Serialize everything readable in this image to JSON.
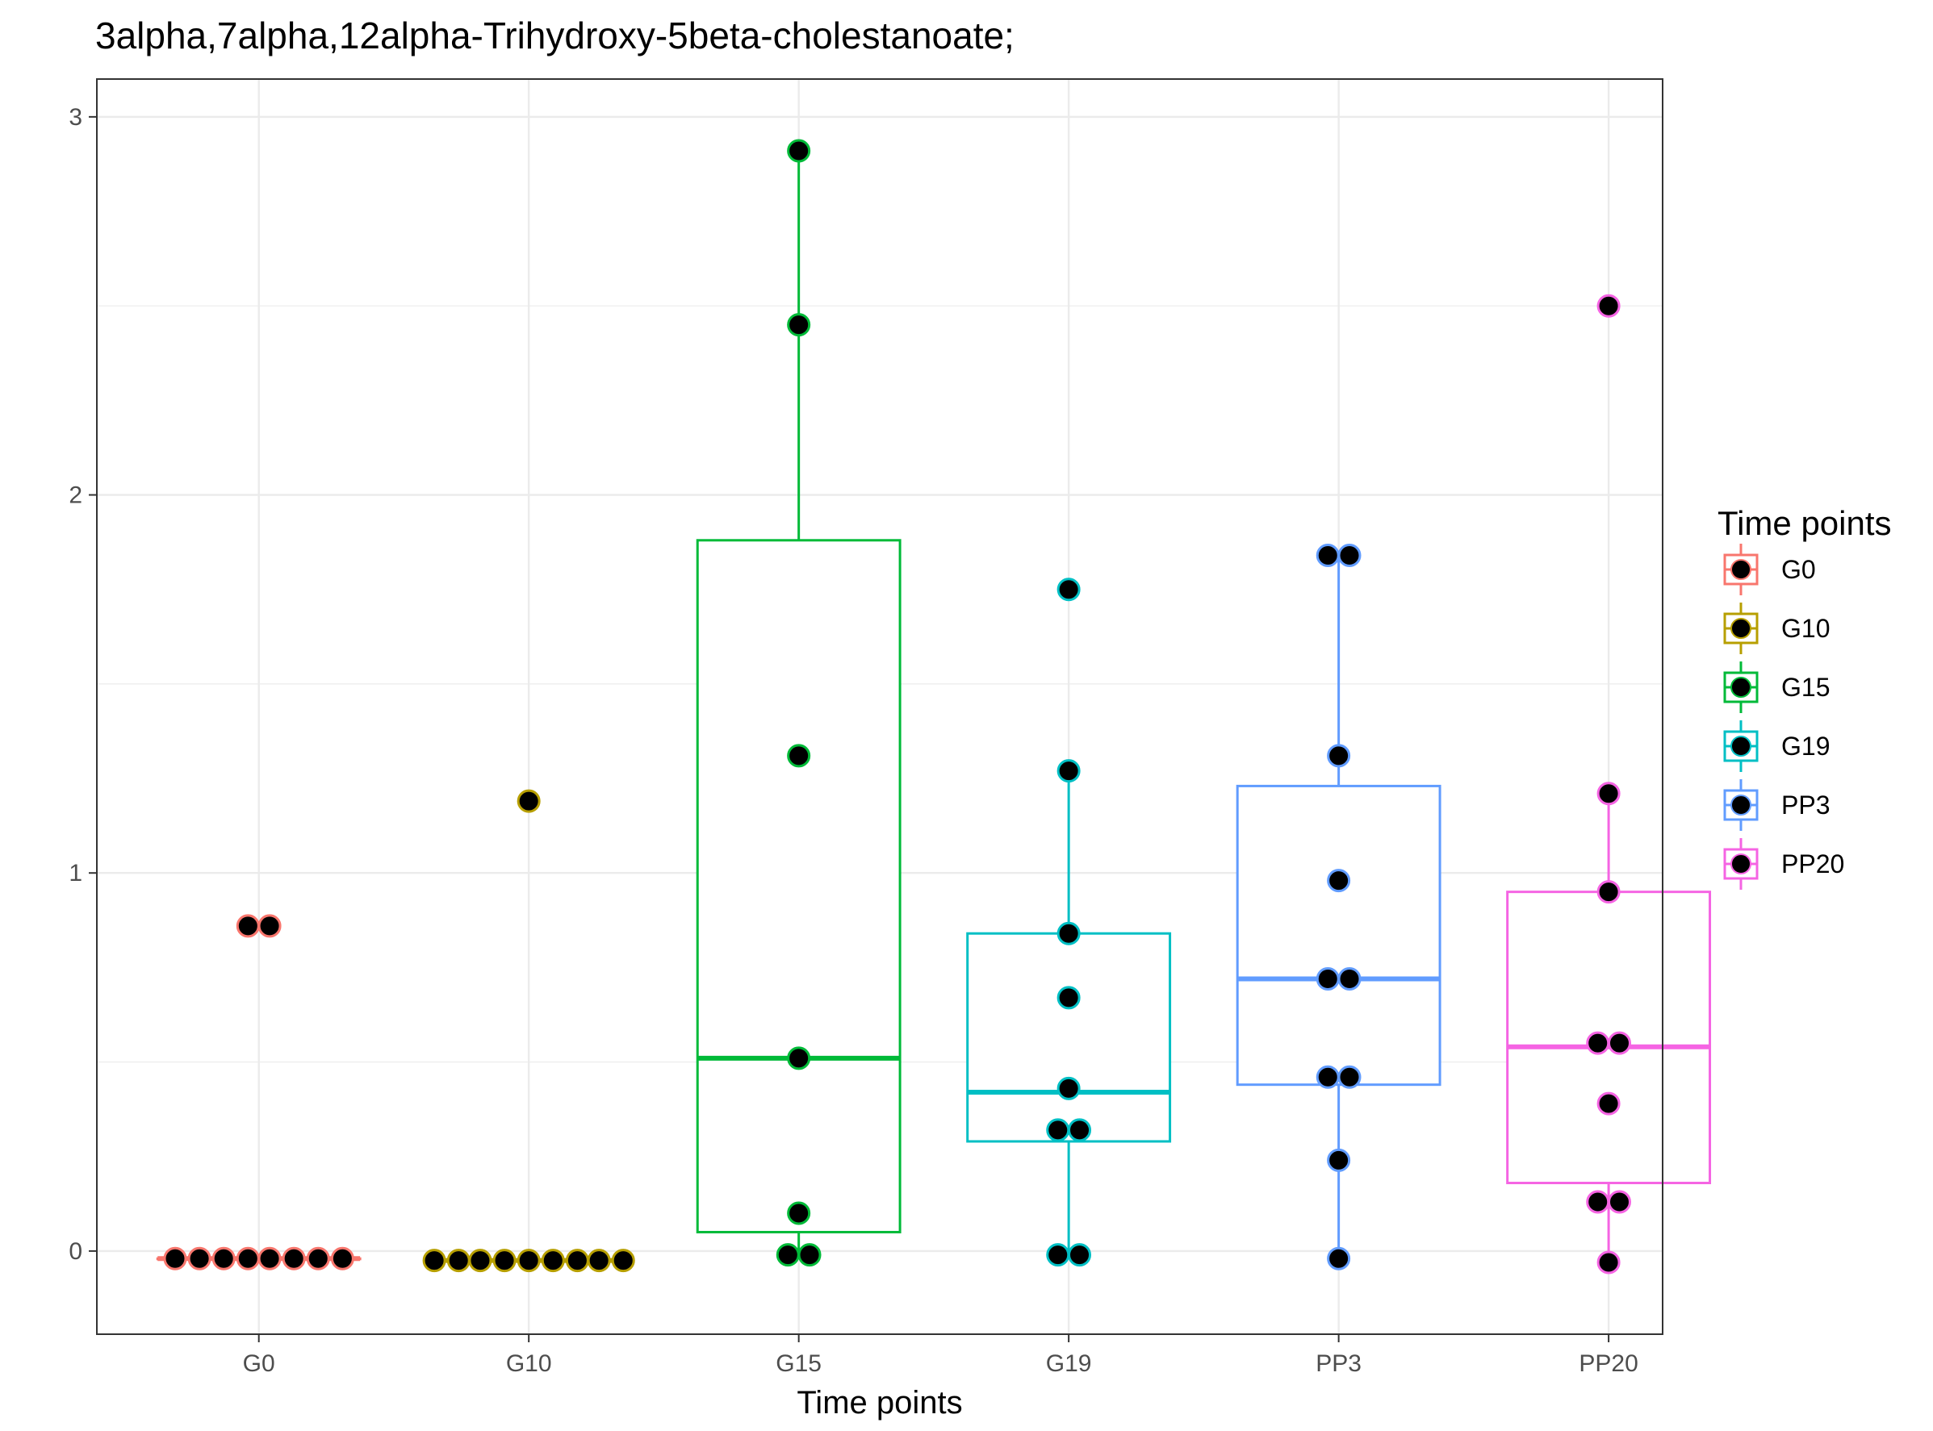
{
  "chart_data": {
    "type": "boxplot",
    "title": "3alpha,7alpha,12alpha-Trihydroxy-5beta-cholestanoate;",
    "xlabel": "Time points",
    "ylabel": "",
    "categories": [
      "G0",
      "G10",
      "G15",
      "G19",
      "PP3",
      "PP20"
    ],
    "ylim": [
      -0.22,
      3.1
    ],
    "yticks": [
      0,
      1,
      2,
      3
    ],
    "grid": true,
    "legend": {
      "title": "Time points",
      "position": "right",
      "entries": [
        "G0",
        "G10",
        "G15",
        "G19",
        "PP3",
        "PP20"
      ]
    },
    "colors": [
      "#F8766D",
      "#B79F00",
      "#00BA38",
      "#00BFC4",
      "#619CFF",
      "#F564E3"
    ],
    "point_fill": "#000000",
    "series": [
      {
        "category": "G0",
        "box": {
          "q1": -0.02,
          "median": -0.02,
          "q3": -0.02,
          "whisker_low": -0.02,
          "whisker_high": -0.02
        },
        "points": [
          {
            "x_offset": -0.31,
            "y": -0.02
          },
          {
            "x_offset": -0.22,
            "y": -0.02
          },
          {
            "x_offset": -0.13,
            "y": -0.02
          },
          {
            "x_offset": -0.04,
            "y": -0.02
          },
          {
            "x_offset": 0.04,
            "y": -0.02
          },
          {
            "x_offset": 0.13,
            "y": -0.02
          },
          {
            "x_offset": 0.22,
            "y": -0.02
          },
          {
            "x_offset": 0.31,
            "y": -0.02
          },
          {
            "x_offset": -0.04,
            "y": 0.86
          },
          {
            "x_offset": 0.04,
            "y": 0.86
          }
        ]
      },
      {
        "category": "G10",
        "box": {
          "q1": -0.025,
          "median": -0.025,
          "q3": -0.025,
          "whisker_low": -0.025,
          "whisker_high": -0.025
        },
        "points": [
          {
            "x_offset": -0.35,
            "y": -0.025
          },
          {
            "x_offset": -0.26,
            "y": -0.025
          },
          {
            "x_offset": -0.18,
            "y": -0.025
          },
          {
            "x_offset": -0.09,
            "y": -0.025
          },
          {
            "x_offset": 0.0,
            "y": -0.025
          },
          {
            "x_offset": 0.09,
            "y": -0.025
          },
          {
            "x_offset": 0.18,
            "y": -0.025
          },
          {
            "x_offset": 0.26,
            "y": -0.025
          },
          {
            "x_offset": 0.35,
            "y": -0.025
          },
          {
            "x_offset": 0.0,
            "y": 1.19
          }
        ]
      },
      {
        "category": "G15",
        "box": {
          "q1": 0.05,
          "median": 0.51,
          "q3": 1.88,
          "whisker_low": -0.01,
          "whisker_high": 2.91
        },
        "points": [
          {
            "x_offset": 0.0,
            "y": 2.91
          },
          {
            "x_offset": 0.0,
            "y": 2.45
          },
          {
            "x_offset": 0.0,
            "y": 1.31
          },
          {
            "x_offset": 0.0,
            "y": 0.51
          },
          {
            "x_offset": 0.0,
            "y": 0.1
          },
          {
            "x_offset": -0.04,
            "y": -0.01
          },
          {
            "x_offset": 0.04,
            "y": -0.01
          }
        ]
      },
      {
        "category": "G19",
        "box": {
          "q1": 0.29,
          "median": 0.42,
          "q3": 0.84,
          "whisker_low": -0.01,
          "whisker_high": 1.27
        },
        "points": [
          {
            "x_offset": 0.0,
            "y": 1.75
          },
          {
            "x_offset": 0.0,
            "y": 1.27
          },
          {
            "x_offset": 0.0,
            "y": 0.84
          },
          {
            "x_offset": 0.0,
            "y": 0.67
          },
          {
            "x_offset": 0.0,
            "y": 0.43
          },
          {
            "x_offset": -0.04,
            "y": 0.32
          },
          {
            "x_offset": 0.04,
            "y": 0.32
          },
          {
            "x_offset": -0.04,
            "y": -0.01
          },
          {
            "x_offset": 0.04,
            "y": -0.01
          }
        ]
      },
      {
        "category": "PP3",
        "box": {
          "q1": 0.44,
          "median": 0.72,
          "q3": 1.23,
          "whisker_low": -0.02,
          "whisker_high": 1.84
        },
        "points": [
          {
            "x_offset": -0.04,
            "y": 1.84
          },
          {
            "x_offset": 0.04,
            "y": 1.84
          },
          {
            "x_offset": 0.0,
            "y": 1.31
          },
          {
            "x_offset": 0.0,
            "y": 0.98
          },
          {
            "x_offset": -0.04,
            "y": 0.72
          },
          {
            "x_offset": 0.04,
            "y": 0.72
          },
          {
            "x_offset": -0.04,
            "y": 0.46
          },
          {
            "x_offset": 0.04,
            "y": 0.46
          },
          {
            "x_offset": 0.0,
            "y": 0.24
          },
          {
            "x_offset": 0.0,
            "y": -0.02
          }
        ]
      },
      {
        "category": "PP20",
        "box": {
          "q1": 0.18,
          "median": 0.54,
          "q3": 0.95,
          "whisker_low": -0.03,
          "whisker_high": 1.21
        },
        "points": [
          {
            "x_offset": 0.0,
            "y": 2.5
          },
          {
            "x_offset": 0.0,
            "y": 1.21
          },
          {
            "x_offset": 0.0,
            "y": 0.95
          },
          {
            "x_offset": -0.04,
            "y": 0.55
          },
          {
            "x_offset": 0.04,
            "y": 0.55
          },
          {
            "x_offset": 0.0,
            "y": 0.39
          },
          {
            "x_offset": -0.04,
            "y": 0.13
          },
          {
            "x_offset": 0.04,
            "y": 0.13
          },
          {
            "x_offset": 0.0,
            "y": -0.03
          }
        ]
      }
    ]
  }
}
